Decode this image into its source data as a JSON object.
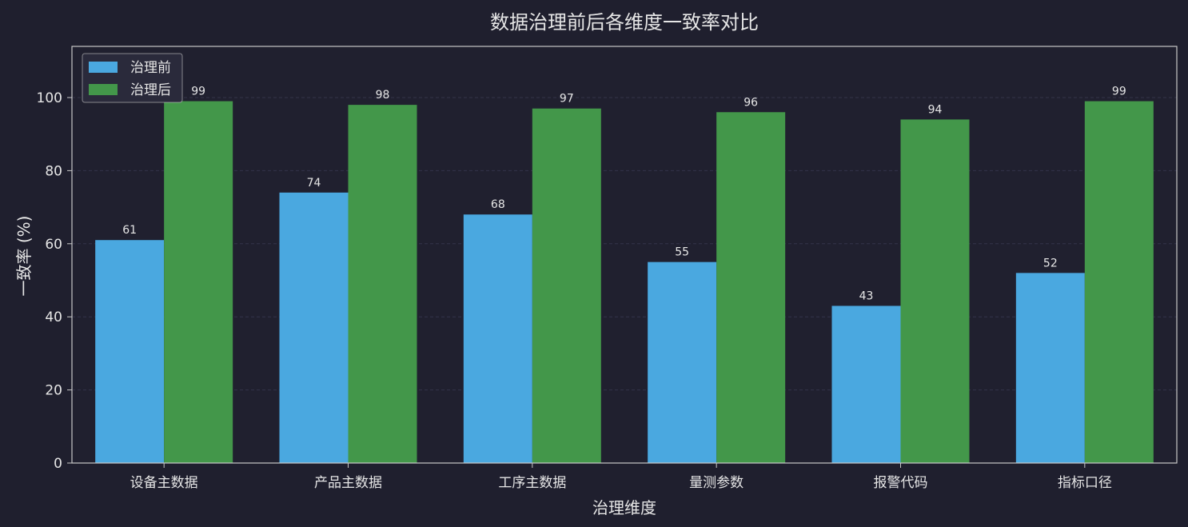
{
  "chart_data": {
    "type": "bar",
    "title": "数据治理前后各维度一致率对比",
    "xlabel": "治理维度",
    "ylabel": "一致率 (%)",
    "categories": [
      "设备主数据",
      "产品主数据",
      "工序主数据",
      "量测参数",
      "报警代码",
      "指标口径"
    ],
    "series": [
      {
        "name": "治理前",
        "values": [
          61,
          74,
          68,
          55,
          43,
          52
        ],
        "color": "#4aa8e0"
      },
      {
        "name": "治理后",
        "values": [
          99,
          98,
          97,
          96,
          94,
          99
        ],
        "color": "#43974a"
      }
    ],
    "ylim": [
      0,
      114
    ],
    "yticks": [
      0,
      20,
      40,
      60,
      80,
      100
    ],
    "grid": true,
    "legend_position": "top-left"
  },
  "colors": {
    "background": "#1f1f2e",
    "axes_face": "#20202f",
    "spine": "#c8c8c8",
    "text": "#e6e6e6",
    "grid": "#33334a"
  }
}
